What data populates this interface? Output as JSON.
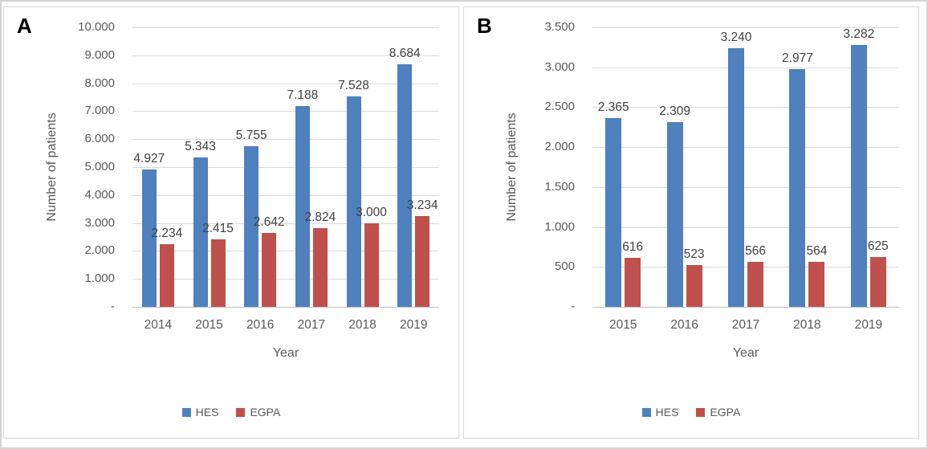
{
  "figure": {
    "series_colors": {
      "HES": "#4E81BD",
      "EGPA": "#C0504D"
    },
    "grid_color": "#D9D9D9",
    "axis_text_color": "#595959",
    "data_label_color": "#404040"
  },
  "chart_data": [
    {
      "type": "bar",
      "panel_label": "A",
      "title": "",
      "xlabel": "Year",
      "ylabel": "Number of patients",
      "ylim": [
        0,
        10000
      ],
      "grid": true,
      "legend_position": "bottom",
      "ytick_labels": [
        "10.000",
        "9.000",
        "8.000",
        "7.000",
        "6.000",
        "5.000",
        "4.000",
        "3.000",
        "2.000",
        "1.000",
        "-"
      ],
      "ytick_values": [
        10000,
        9000,
        8000,
        7000,
        6000,
        5000,
        4000,
        3000,
        2000,
        1000,
        0
      ],
      "categories": [
        "2014",
        "2015",
        "2016",
        "2017",
        "2018",
        "2019"
      ],
      "series": [
        {
          "name": "HES",
          "color": "#4E81BD",
          "values": [
            4927,
            5343,
            5755,
            7188,
            7528,
            8684
          ],
          "labels": [
            "4.927",
            "5.343",
            "5.755",
            "7.188",
            "7.528",
            "8.684"
          ]
        },
        {
          "name": "EGPA",
          "color": "#C0504D",
          "values": [
            2234,
            2415,
            2642,
            2824,
            3000,
            3234
          ],
          "labels": [
            "2.234",
            "2.415",
            "2.642",
            "2.824",
            "3.000",
            "3.234"
          ]
        }
      ],
      "legend": [
        "HES",
        "EGPA"
      ]
    },
    {
      "type": "bar",
      "panel_label": "B",
      "title": "",
      "xlabel": "Year",
      "ylabel": "Number of patients",
      "ylim": [
        0,
        3500
      ],
      "grid": true,
      "legend_position": "bottom",
      "ytick_labels": [
        "3.500",
        "3.000",
        "2.500",
        "2.000",
        "1.500",
        "1.000",
        "500",
        "-"
      ],
      "ytick_values": [
        3500,
        3000,
        2500,
        2000,
        1500,
        1000,
        500,
        0
      ],
      "categories": [
        "2015",
        "2016",
        "2017",
        "2018",
        "2019"
      ],
      "series": [
        {
          "name": "HES",
          "color": "#4E81BD",
          "values": [
            2365,
            2309,
            3240,
            2977,
            3282
          ],
          "labels": [
            "2.365",
            "2.309",
            "3.240",
            "2.977",
            "3.282"
          ]
        },
        {
          "name": "EGPA",
          "color": "#C0504D",
          "values": [
            616,
            523,
            566,
            564,
            625
          ],
          "labels": [
            "616",
            "523",
            "566",
            "564",
            "625"
          ]
        }
      ],
      "legend": [
        "HES",
        "EGPA"
      ]
    }
  ]
}
